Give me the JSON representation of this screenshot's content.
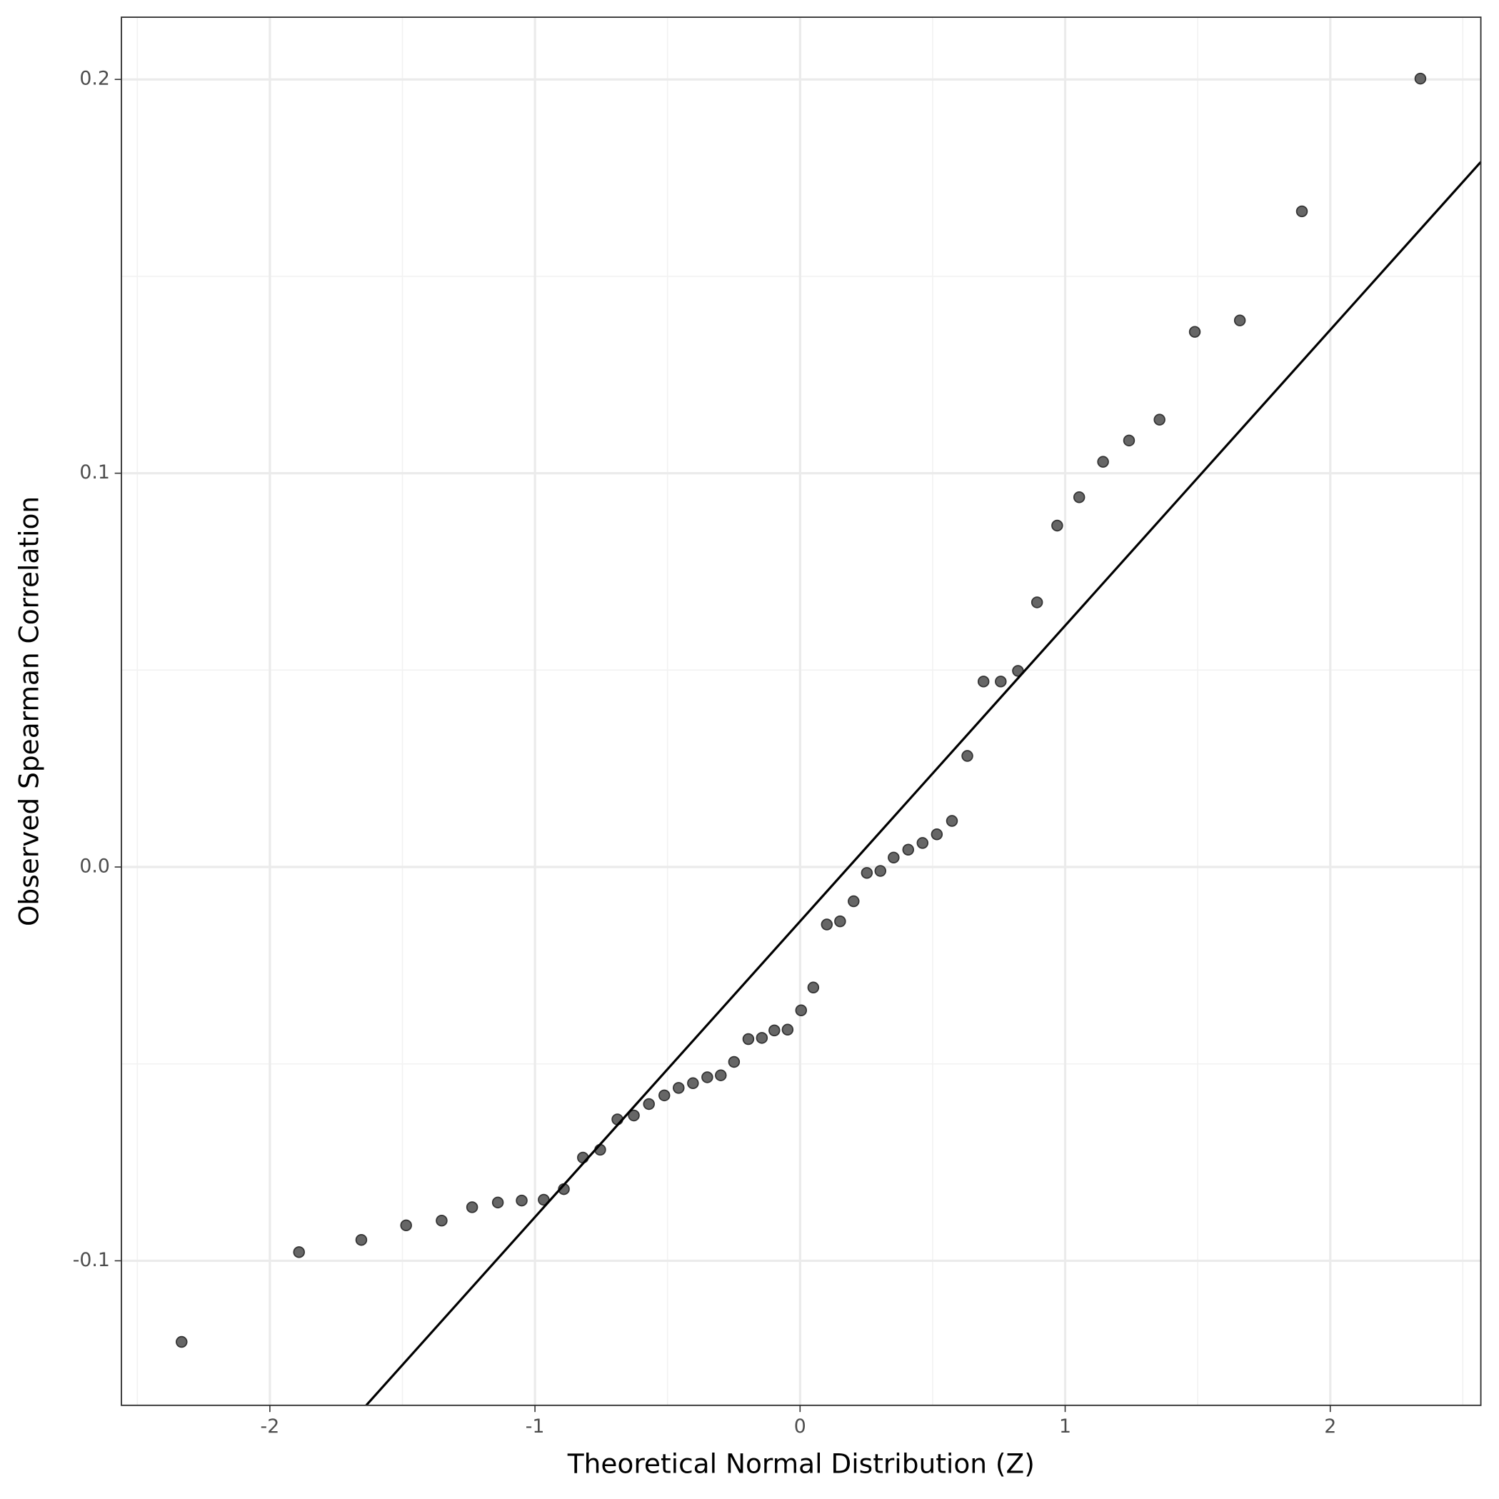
{
  "chart_data": {
    "type": "scatter",
    "x_label": "Theoretical Normal Distribution (Z)",
    "y_label": "Observed Spearman Correlation",
    "xlim": [
      -2.56,
      2.568
    ],
    "ylim": [
      -0.1367,
      0.2158
    ],
    "xticks": [
      -2,
      -1,
      0,
      1,
      2
    ],
    "yticks": [
      {
        "value": -0.1,
        "label": "-0.1"
      },
      {
        "value": 0,
        "label": "0.0"
      },
      {
        "value": 0.1,
        "label": "0.1"
      },
      {
        "value": 0.2,
        "label": "0.2"
      }
    ],
    "grid": true,
    "color": "#666666",
    "x": [
      -2.333,
      -1.89,
      -1.655,
      -1.486,
      -1.352,
      -1.237,
      -1.14,
      -1.05,
      -0.967,
      -0.891,
      -0.819,
      -0.754,
      -0.689,
      -0.627,
      -0.57,
      -0.512,
      -0.458,
      -0.404,
      -0.35,
      -0.299,
      -0.249,
      -0.195,
      -0.144,
      -0.097,
      -0.047,
      0.004,
      0.05,
      0.101,
      0.151,
      0.202,
      0.252,
      0.303,
      0.353,
      0.408,
      0.462,
      0.516,
      0.573,
      0.631,
      0.692,
      0.757,
      0.822,
      0.894,
      0.97,
      1.053,
      1.143,
      1.241,
      1.356,
      1.489,
      1.659,
      1.893,
      2.34
    ],
    "values": [
      -0.1206,
      -0.0978,
      -0.0947,
      -0.091,
      -0.0898,
      -0.0864,
      -0.0852,
      -0.0847,
      -0.0845,
      -0.0818,
      -0.0738,
      -0.0718,
      -0.0641,
      -0.0631,
      -0.0602,
      -0.058,
      -0.0561,
      -0.0549,
      -0.0534,
      -0.0529,
      -0.0495,
      -0.0437,
      -0.0434,
      -0.0415,
      -0.0413,
      -0.0364,
      -0.0306,
      -0.0146,
      -0.0138,
      -0.0087,
      -0.0015,
      -0.001,
      0.0024,
      0.0044,
      0.0061,
      0.0083,
      0.0117,
      0.0282,
      0.0471,
      0.0471,
      0.0498,
      0.0672,
      0.0867,
      0.0939,
      0.1029,
      0.1083,
      0.1136,
      0.1359,
      0.1388,
      0.1665,
      0.2002
    ],
    "reference_line": {
      "slope": 0.0751,
      "intercept": -0.0138,
      "color": "#000000"
    }
  }
}
